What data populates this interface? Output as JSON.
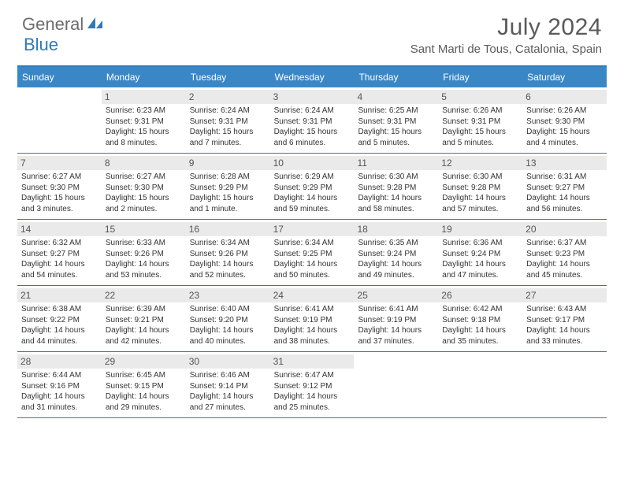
{
  "brand": {
    "part1": "General",
    "part2": "Blue"
  },
  "title": "July 2024",
  "location": "Sant Marti de Tous, Catalonia, Spain",
  "colors": {
    "header_bg": "#3a87c7",
    "divider": "#2f79b9",
    "daynum_bg": "#eaeaea",
    "text": "#333333",
    "title": "#5a5a5a",
    "logo_gray": "#6c6c6c",
    "logo_blue": "#2f79b9"
  },
  "day_headers": [
    "Sunday",
    "Monday",
    "Tuesday",
    "Wednesday",
    "Thursday",
    "Friday",
    "Saturday"
  ],
  "weeks": [
    [
      {
        "n": "",
        "sunrise": "",
        "sunset": "",
        "daylight": ""
      },
      {
        "n": "1",
        "sunrise": "6:23 AM",
        "sunset": "9:31 PM",
        "daylight": "15 hours and 8 minutes."
      },
      {
        "n": "2",
        "sunrise": "6:24 AM",
        "sunset": "9:31 PM",
        "daylight": "15 hours and 7 minutes."
      },
      {
        "n": "3",
        "sunrise": "6:24 AM",
        "sunset": "9:31 PM",
        "daylight": "15 hours and 6 minutes."
      },
      {
        "n": "4",
        "sunrise": "6:25 AM",
        "sunset": "9:31 PM",
        "daylight": "15 hours and 5 minutes."
      },
      {
        "n": "5",
        "sunrise": "6:26 AM",
        "sunset": "9:31 PM",
        "daylight": "15 hours and 5 minutes."
      },
      {
        "n": "6",
        "sunrise": "6:26 AM",
        "sunset": "9:30 PM",
        "daylight": "15 hours and 4 minutes."
      }
    ],
    [
      {
        "n": "7",
        "sunrise": "6:27 AM",
        "sunset": "9:30 PM",
        "daylight": "15 hours and 3 minutes."
      },
      {
        "n": "8",
        "sunrise": "6:27 AM",
        "sunset": "9:30 PM",
        "daylight": "15 hours and 2 minutes."
      },
      {
        "n": "9",
        "sunrise": "6:28 AM",
        "sunset": "9:29 PM",
        "daylight": "15 hours and 1 minute."
      },
      {
        "n": "10",
        "sunrise": "6:29 AM",
        "sunset": "9:29 PM",
        "daylight": "14 hours and 59 minutes."
      },
      {
        "n": "11",
        "sunrise": "6:30 AM",
        "sunset": "9:28 PM",
        "daylight": "14 hours and 58 minutes."
      },
      {
        "n": "12",
        "sunrise": "6:30 AM",
        "sunset": "9:28 PM",
        "daylight": "14 hours and 57 minutes."
      },
      {
        "n": "13",
        "sunrise": "6:31 AM",
        "sunset": "9:27 PM",
        "daylight": "14 hours and 56 minutes."
      }
    ],
    [
      {
        "n": "14",
        "sunrise": "6:32 AM",
        "sunset": "9:27 PM",
        "daylight": "14 hours and 54 minutes."
      },
      {
        "n": "15",
        "sunrise": "6:33 AM",
        "sunset": "9:26 PM",
        "daylight": "14 hours and 53 minutes."
      },
      {
        "n": "16",
        "sunrise": "6:34 AM",
        "sunset": "9:26 PM",
        "daylight": "14 hours and 52 minutes."
      },
      {
        "n": "17",
        "sunrise": "6:34 AM",
        "sunset": "9:25 PM",
        "daylight": "14 hours and 50 minutes."
      },
      {
        "n": "18",
        "sunrise": "6:35 AM",
        "sunset": "9:24 PM",
        "daylight": "14 hours and 49 minutes."
      },
      {
        "n": "19",
        "sunrise": "6:36 AM",
        "sunset": "9:24 PM",
        "daylight": "14 hours and 47 minutes."
      },
      {
        "n": "20",
        "sunrise": "6:37 AM",
        "sunset": "9:23 PM",
        "daylight": "14 hours and 45 minutes."
      }
    ],
    [
      {
        "n": "21",
        "sunrise": "6:38 AM",
        "sunset": "9:22 PM",
        "daylight": "14 hours and 44 minutes."
      },
      {
        "n": "22",
        "sunrise": "6:39 AM",
        "sunset": "9:21 PM",
        "daylight": "14 hours and 42 minutes."
      },
      {
        "n": "23",
        "sunrise": "6:40 AM",
        "sunset": "9:20 PM",
        "daylight": "14 hours and 40 minutes."
      },
      {
        "n": "24",
        "sunrise": "6:41 AM",
        "sunset": "9:19 PM",
        "daylight": "14 hours and 38 minutes."
      },
      {
        "n": "25",
        "sunrise": "6:41 AM",
        "sunset": "9:19 PM",
        "daylight": "14 hours and 37 minutes."
      },
      {
        "n": "26",
        "sunrise": "6:42 AM",
        "sunset": "9:18 PM",
        "daylight": "14 hours and 35 minutes."
      },
      {
        "n": "27",
        "sunrise": "6:43 AM",
        "sunset": "9:17 PM",
        "daylight": "14 hours and 33 minutes."
      }
    ],
    [
      {
        "n": "28",
        "sunrise": "6:44 AM",
        "sunset": "9:16 PM",
        "daylight": "14 hours and 31 minutes."
      },
      {
        "n": "29",
        "sunrise": "6:45 AM",
        "sunset": "9:15 PM",
        "daylight": "14 hours and 29 minutes."
      },
      {
        "n": "30",
        "sunrise": "6:46 AM",
        "sunset": "9:14 PM",
        "daylight": "14 hours and 27 minutes."
      },
      {
        "n": "31",
        "sunrise": "6:47 AM",
        "sunset": "9:12 PM",
        "daylight": "14 hours and 25 minutes."
      },
      {
        "n": "",
        "sunrise": "",
        "sunset": "",
        "daylight": ""
      },
      {
        "n": "",
        "sunrise": "",
        "sunset": "",
        "daylight": ""
      },
      {
        "n": "",
        "sunrise": "",
        "sunset": "",
        "daylight": ""
      }
    ]
  ],
  "labels": {
    "sunrise": "Sunrise:",
    "sunset": "Sunset:",
    "daylight": "Daylight:"
  }
}
